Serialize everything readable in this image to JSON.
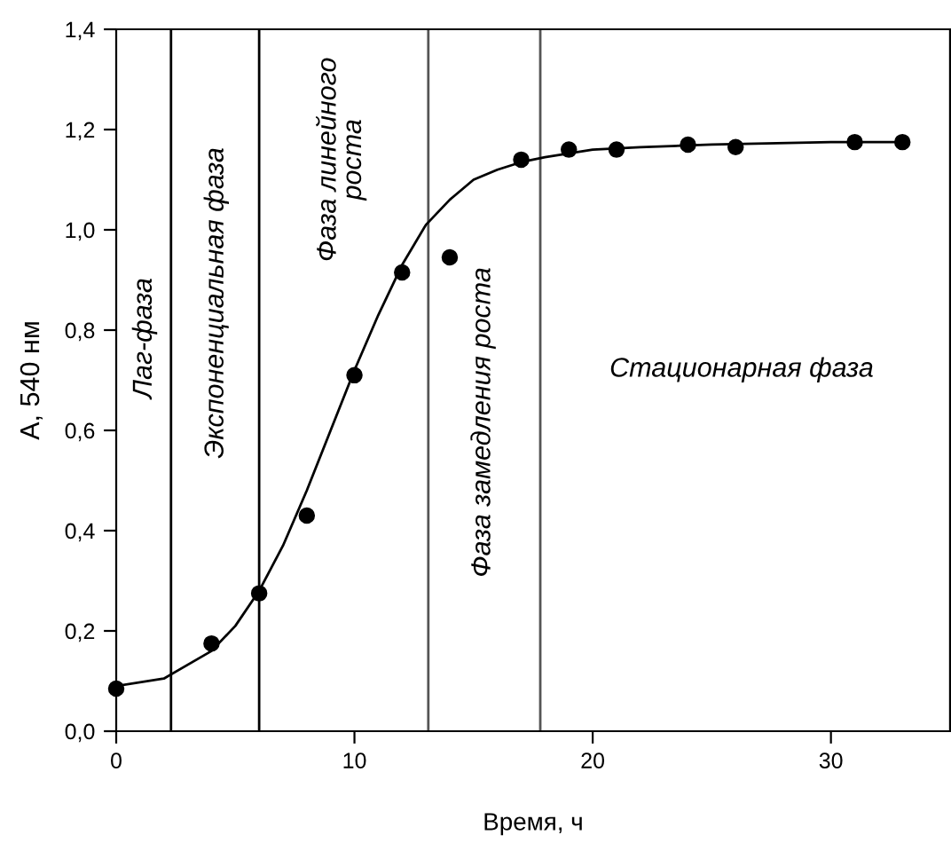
{
  "chart_data": {
    "type": "scatter",
    "xlabel": "Время, ч",
    "ylabel": "А, 540 нм",
    "series": [
      {
        "color": "#000000",
        "marker": "circle",
        "x": [
          0,
          4,
          6,
          8,
          10,
          12,
          14,
          17,
          19,
          21,
          24,
          26,
          31,
          33
        ],
        "values": [
          0.085,
          0.175,
          0.275,
          0.43,
          0.71,
          0.915,
          0.945,
          1.14,
          1.16,
          1.16,
          1.17,
          1.165,
          1.175,
          1.175
        ]
      },
      {
        "type": "line",
        "color": "#000000",
        "marker": "none",
        "line_style": "solid",
        "x": [
          0,
          2,
          4,
          5,
          6,
          7,
          8,
          9,
          10,
          11,
          12,
          13,
          14,
          15,
          16,
          17,
          18,
          20,
          22,
          25,
          30,
          33
        ],
        "values": [
          0.09,
          0.105,
          0.16,
          0.21,
          0.28,
          0.37,
          0.48,
          0.6,
          0.72,
          0.83,
          0.93,
          1.01,
          1.06,
          1.1,
          1.12,
          1.135,
          1.145,
          1.16,
          1.165,
          1.17,
          1.175,
          1.175
        ]
      }
    ],
    "ref_lines": [
      {
        "axis": "x",
        "value": 2.3,
        "color": "#000000"
      },
      {
        "axis": "x",
        "value": 6,
        "color": "#000000"
      },
      {
        "axis": "x",
        "value": 13.1,
        "color": "#555555"
      },
      {
        "axis": "x",
        "value": 17.8,
        "color": "#555555"
      }
    ],
    "annotations": [
      "Лаг-фаза",
      "Экспоненциальная фаза",
      "Фаза линейного\nроста",
      "Фаза замедления роста",
      "Стационарная фаза"
    ],
    "xlim": [
      0,
      35
    ],
    "ylim": [
      0,
      1.4
    ],
    "xticks": [
      0,
      10,
      20,
      30
    ],
    "yticks": [
      {
        "value": 0,
        "label": "0,0"
      },
      {
        "value": 0.2,
        "label": "0,2"
      },
      {
        "value": 0.4,
        "label": "0,4"
      },
      {
        "value": 0.6,
        "label": "0,6"
      },
      {
        "value": 0.8,
        "label": "0,8"
      },
      {
        "value": 1.0,
        "label": "1,0"
      },
      {
        "value": 1.2,
        "label": "1,2"
      },
      {
        "value": 1.4,
        "label": "1,4"
      }
    ],
    "grid": false,
    "legend": false
  }
}
